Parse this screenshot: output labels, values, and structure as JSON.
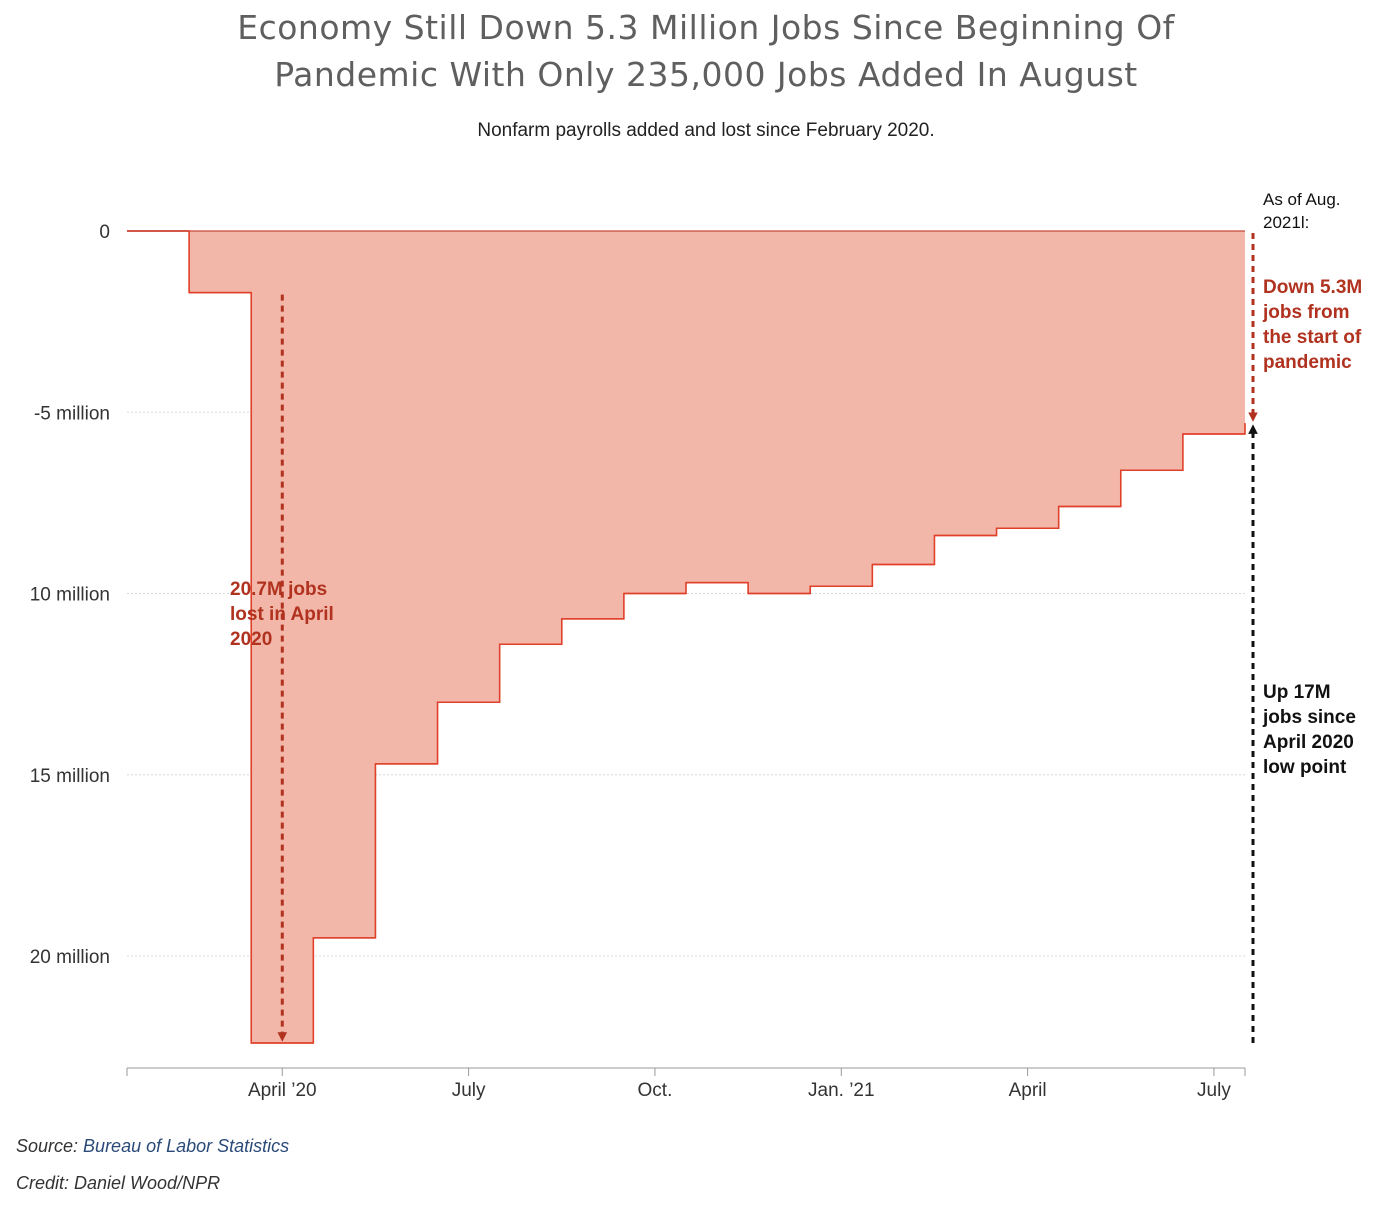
{
  "title_line1": "Economy Still Down 5.3 Million Jobs Since Beginning Of",
  "title_line2": "Pandemic With Only 235,000 Jobs Added In August",
  "subtitle": "Nonfarm payrolls added and lost since February 2020.",
  "source_prefix": "Source: ",
  "source_link": "Bureau of Labor Statistics",
  "credit": "Credit: Daniel Wood/NPR",
  "colors": {
    "fill": "#f2b7a9",
    "line": "#e0402a",
    "annotation_red": "#b0321f",
    "annotation_dark": "#111111",
    "axis_text": "#333333",
    "grid": "#d8d8d8"
  },
  "chart_data": {
    "type": "area",
    "step": true,
    "x": [
      "2020-02",
      "2020-03",
      "2020-04",
      "2020-05",
      "2020-06",
      "2020-07",
      "2020-08",
      "2020-09",
      "2020-10",
      "2020-11",
      "2020-12",
      "2021-01",
      "2021-02",
      "2021-03",
      "2021-04",
      "2021-05",
      "2021-06",
      "2021-07",
      "2021-08"
    ],
    "series": [
      {
        "values": [
          0,
          -1.7,
          -22.4,
          -19.5,
          -14.7,
          -13.0,
          -11.4,
          -10.7,
          -10.0,
          -9.7,
          -10.0,
          -9.8,
          -9.2,
          -8.4,
          -8.2,
          -7.6,
          -6.6,
          -5.6,
          -5.3
        ]
      }
    ],
    "ylim": [
      -23,
      0
    ],
    "y_ticks": [
      {
        "value": 0,
        "label": "0"
      },
      {
        "value": -5,
        "label": "-5 million"
      },
      {
        "value": -10,
        "label": "10 million"
      },
      {
        "value": -15,
        "label": "15 million"
      },
      {
        "value": -20,
        "label": "20 million"
      }
    ],
    "x_ticks": [
      {
        "month": 2,
        "label": "April ’20"
      },
      {
        "month": 5,
        "label": "July"
      },
      {
        "month": 8,
        "label": "Oct."
      },
      {
        "month": 11,
        "label": "Jan. ’21"
      },
      {
        "month": 14,
        "label": "April"
      },
      {
        "month": 17,
        "label": "July"
      }
    ],
    "grid": true,
    "annotations": {
      "april_loss": [
        "20.7M jobs",
        "lost in April",
        "2020"
      ],
      "as_of": [
        "As of Aug.",
        "2021l:"
      ],
      "down": [
        "Down 5.3M",
        "jobs from",
        "the start of",
        "pandemic"
      ],
      "up": [
        "Up 17M",
        "jobs since",
        "April 2020",
        "low point"
      ]
    }
  }
}
